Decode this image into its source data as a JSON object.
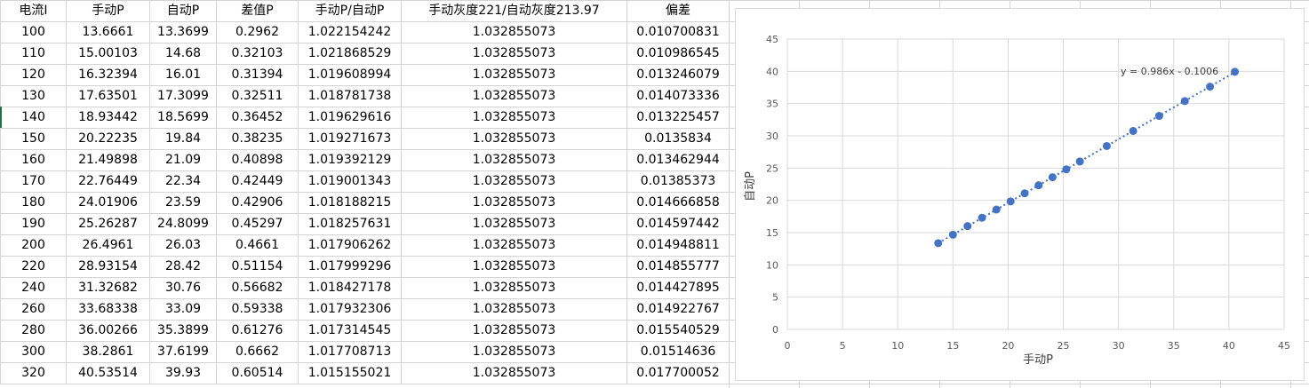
{
  "table": {
    "headers": [
      "电流I",
      "手动P",
      "自动P",
      "差值P",
      "手动P/自动P",
      "手动灰度221/自动灰度213.97",
      "偏差"
    ],
    "rows": [
      [
        "100",
        "13.6661",
        "13.3699",
        "0.2962",
        "1.022154242",
        "1.032855073",
        "0.010700831"
      ],
      [
        "110",
        "15.00103",
        "14.68",
        "0.32103",
        "1.021868529",
        "1.032855073",
        "0.010986545"
      ],
      [
        "120",
        "16.32394",
        "16.01",
        "0.31394",
        "1.019608994",
        "1.032855073",
        "0.013246079"
      ],
      [
        "130",
        "17.63501",
        "17.3099",
        "0.32511",
        "1.018781738",
        "1.032855073",
        "0.014073336"
      ],
      [
        "140",
        "18.93442",
        "18.5699",
        "0.36452",
        "1.019629616",
        "1.032855073",
        "0.013225457"
      ],
      [
        "150",
        "20.22235",
        "19.84",
        "0.38235",
        "1.019271673",
        "1.032855073",
        "0.0135834"
      ],
      [
        "160",
        "21.49898",
        "21.09",
        "0.40898",
        "1.019392129",
        "1.032855073",
        "0.013462944"
      ],
      [
        "170",
        "22.76449",
        "22.34",
        "0.42449",
        "1.019001343",
        "1.032855073",
        "0.01385373"
      ],
      [
        "180",
        "24.01906",
        "23.59",
        "0.42906",
        "1.018188215",
        "1.032855073",
        "0.014666858"
      ],
      [
        "190",
        "25.26287",
        "24.8099",
        "0.45297",
        "1.018257631",
        "1.032855073",
        "0.014597442"
      ],
      [
        "200",
        "26.4961",
        "26.03",
        "0.4661",
        "1.017906262",
        "1.032855073",
        "0.014948811"
      ],
      [
        "220",
        "28.93154",
        "28.42",
        "0.51154",
        "1.017999296",
        "1.032855073",
        "0.014855777"
      ],
      [
        "240",
        "31.32682",
        "30.76",
        "0.56682",
        "1.018427178",
        "1.032855073",
        "0.014427895"
      ],
      [
        "260",
        "33.68338",
        "33.09",
        "0.59338",
        "1.017932306",
        "1.032855073",
        "0.014922767"
      ],
      [
        "280",
        "36.00266",
        "35.3899",
        "0.61276",
        "1.017314545",
        "1.032855073",
        "0.015540529"
      ],
      [
        "300",
        "38.2861",
        "37.6199",
        "0.6662",
        "1.017708713",
        "1.032855073",
        "0.01514636"
      ],
      [
        "320",
        "40.53514",
        "39.93",
        "0.60514",
        "1.015155021",
        "1.032855073",
        "0.017700052"
      ]
    ]
  },
  "chart_data": {
    "type": "scatter",
    "xlabel": "手动P",
    "ylabel": "自动P",
    "xlim": [
      0,
      45
    ],
    "ylim": [
      0,
      45
    ],
    "xticks": [
      "0",
      "5",
      "10",
      "15",
      "20",
      "25",
      "30",
      "35",
      "40",
      "45"
    ],
    "yticks": [
      "0",
      "5",
      "10",
      "15",
      "20",
      "25",
      "30",
      "35",
      "40",
      "45"
    ],
    "grid": true,
    "trendline": {
      "type": "linear",
      "slope": 0.986,
      "intercept": -0.1006,
      "label": "y = 0.986x - 0.1006",
      "style": "dotted"
    },
    "marker_color": "#4472c4",
    "x": [
      13.6661,
      15.00103,
      16.32394,
      17.63501,
      18.93442,
      20.22235,
      21.49898,
      22.76449,
      24.01906,
      25.26287,
      26.4961,
      28.93154,
      31.32682,
      33.68338,
      36.00266,
      38.2861,
      40.53514
    ],
    "y": [
      13.3699,
      14.68,
      16.01,
      17.3099,
      18.5699,
      19.84,
      21.09,
      22.34,
      23.59,
      24.8099,
      26.03,
      28.42,
      30.76,
      33.09,
      35.3899,
      37.6199,
      39.93
    ]
  }
}
